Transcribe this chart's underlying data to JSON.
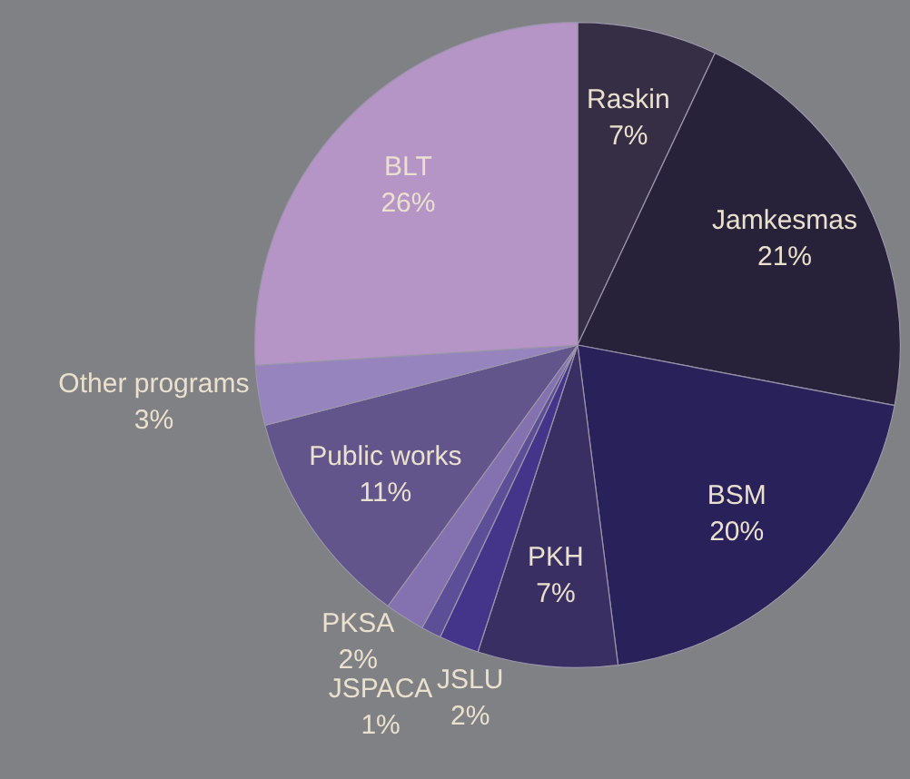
{
  "chart_data": {
    "type": "pie",
    "categories": [
      "Raskin",
      "Jamkesmas",
      "BSM",
      "PKH",
      "JSLU",
      "JSPACA",
      "PKSA",
      "Public works",
      "Other programs",
      "BLT"
    ],
    "values": [
      7,
      21,
      20,
      7,
      2,
      1,
      2,
      11,
      3,
      26
    ],
    "colors": [
      "#352e45",
      "#27223a",
      "#29215a",
      "#3a2f62",
      "#44358b",
      "#5d4f97",
      "#8471af",
      "#61558b",
      "#9684bf",
      "#b594c6"
    ],
    "value_labels": [
      "7%",
      "21%",
      "20%",
      "7%",
      "2%",
      "1%",
      "2%",
      "11%",
      "3%",
      "26%"
    ]
  }
}
